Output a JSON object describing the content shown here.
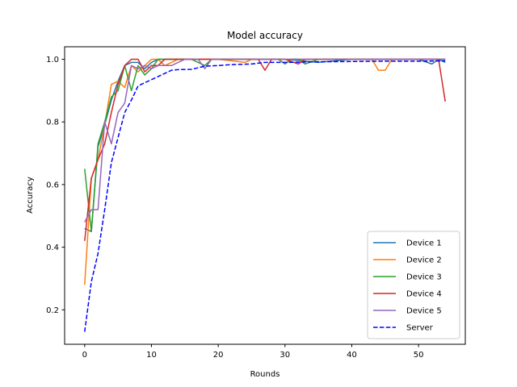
{
  "chart_data": {
    "type": "line",
    "title": "Model accuracy",
    "xlabel": "Rounds",
    "ylabel": "Accuracy",
    "xlim": [
      -3,
      57
    ],
    "ylim": [
      0.09,
      1.04
    ],
    "xticks": [
      0,
      10,
      20,
      30,
      40,
      50
    ],
    "yticks": [
      0.2,
      0.4,
      0.6,
      0.8,
      1.0
    ],
    "ytick_labels": [
      "0.2",
      "0.4",
      "0.6",
      "0.8",
      "1.0"
    ],
    "grid": false,
    "legend_position": "lower-right",
    "series": [
      {
        "name": "Device 1",
        "color": "#1f77b4",
        "dash": "solid",
        "x": [
          0,
          1,
          2,
          3,
          4,
          5,
          6,
          7,
          8,
          9,
          10,
          11,
          12,
          13,
          14,
          15,
          16,
          18,
          20,
          25,
          30,
          35,
          40,
          45,
          50,
          52,
          53,
          54
        ],
        "y": [
          0.46,
          0.45,
          0.72,
          0.79,
          0.87,
          0.93,
          0.98,
          0.99,
          0.99,
          0.97,
          0.99,
          1.0,
          1.0,
          1.0,
          1.0,
          1.0,
          1.0,
          1.0,
          1.0,
          1.0,
          1.0,
          0.99,
          1.0,
          1.0,
          1.0,
          0.985,
          1.0,
          0.99
        ]
      },
      {
        "name": "Device 2",
        "color": "#ff7f0e",
        "dash": "solid",
        "x": [
          0,
          1,
          2,
          3,
          4,
          5,
          6,
          7,
          8,
          9,
          10,
          11,
          12,
          13,
          14,
          15,
          16,
          18,
          20,
          24,
          25,
          30,
          35,
          40,
          43,
          44,
          45,
          46,
          50,
          54
        ],
        "y": [
          0.28,
          0.62,
          0.68,
          0.79,
          0.92,
          0.93,
          0.91,
          0.98,
          0.96,
          0.98,
          1.0,
          1.0,
          0.98,
          0.99,
          1.0,
          1.0,
          1.0,
          1.0,
          1.0,
          0.99,
          1.0,
          1.0,
          1.0,
          1.0,
          1.0,
          0.965,
          0.965,
          1.0,
          1.0,
          1.0
        ]
      },
      {
        "name": "Device 3",
        "color": "#2ca02c",
        "dash": "solid",
        "x": [
          0,
          1,
          2,
          3,
          4,
          5,
          6,
          7,
          8,
          9,
          10,
          11,
          12,
          13,
          14,
          15,
          16,
          18,
          19,
          20,
          25,
          29,
          30,
          31,
          32,
          33,
          35,
          40,
          45,
          50,
          54
        ],
        "y": [
          0.65,
          0.45,
          0.73,
          0.8,
          0.88,
          0.9,
          0.98,
          0.9,
          0.98,
          0.95,
          0.97,
          1.0,
          1.0,
          1.0,
          1.0,
          1.0,
          1.0,
          0.98,
          1.0,
          1.0,
          1.0,
          1.0,
          0.985,
          1.0,
          1.0,
          0.985,
          1.0,
          1.0,
          1.0,
          1.0,
          1.0
        ]
      },
      {
        "name": "Device 4",
        "color": "#d62728",
        "dash": "solid",
        "x": [
          0,
          1,
          2,
          3,
          4,
          5,
          6,
          7,
          8,
          9,
          10,
          11,
          12,
          13,
          14,
          15,
          16,
          20,
          25,
          26,
          27,
          28,
          30,
          32,
          33,
          35,
          40,
          45,
          50,
          53,
          54
        ],
        "y": [
          0.42,
          0.62,
          0.68,
          0.73,
          0.83,
          0.92,
          0.98,
          1.0,
          1.0,
          0.96,
          0.98,
          0.98,
          1.0,
          1.0,
          1.0,
          1.0,
          1.0,
          1.0,
          1.0,
          1.0,
          0.965,
          1.0,
          1.0,
          0.985,
          1.0,
          1.0,
          1.0,
          1.0,
          1.0,
          1.0,
          0.865
        ]
      },
      {
        "name": "Device 5",
        "color": "#9467bd",
        "dash": "solid",
        "x": [
          0,
          1,
          2,
          3,
          4,
          5,
          6,
          7,
          8,
          9,
          10,
          11,
          12,
          13,
          14,
          15,
          16,
          17,
          18,
          19,
          20,
          25,
          30,
          35,
          40,
          45,
          50,
          54
        ],
        "y": [
          0.48,
          0.52,
          0.52,
          0.8,
          0.73,
          0.83,
          0.86,
          0.98,
          0.97,
          0.98,
          0.97,
          0.98,
          0.98,
          0.98,
          0.99,
          1.0,
          1.0,
          1.0,
          0.97,
          1.0,
          1.0,
          1.0,
          1.0,
          1.0,
          1.0,
          1.0,
          1.0,
          1.0
        ]
      },
      {
        "name": "Server",
        "color": "#0000ff",
        "dash": "dashed",
        "x": [
          0,
          1,
          2,
          3,
          4,
          5,
          6,
          7,
          8,
          9,
          10,
          11,
          12,
          13,
          14,
          16,
          18,
          20,
          22,
          25,
          27,
          30,
          35,
          40,
          45,
          50,
          54
        ],
        "y": [
          0.13,
          0.29,
          0.38,
          0.52,
          0.67,
          0.75,
          0.83,
          0.87,
          0.915,
          0.925,
          0.935,
          0.945,
          0.955,
          0.965,
          0.967,
          0.968,
          0.978,
          0.98,
          0.983,
          0.985,
          0.99,
          0.99,
          0.992,
          0.993,
          0.994,
          0.994,
          0.995
        ]
      }
    ]
  }
}
